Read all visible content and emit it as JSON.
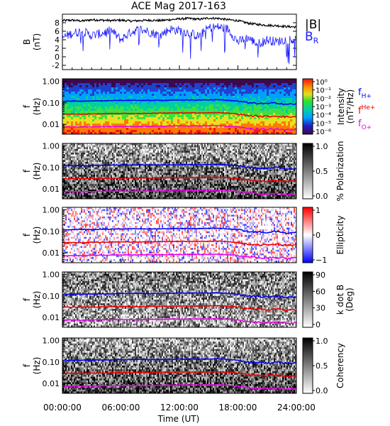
{
  "title": "ACE Mag 2017-163",
  "colors": {
    "btotal": "#000000",
    "bradial": "#1a1aff",
    "fH": "#0000ee",
    "fHe": "#ee0000",
    "fO": "#ee00ee"
  },
  "chart_data": [
    {
      "type": "line",
      "panel": "magnetic-field",
      "ylabel": "B",
      "yunit": "(nT)",
      "ylim": [
        -3,
        10
      ],
      "yticks": [
        "-2",
        "0",
        "2",
        "4",
        "6",
        "8"
      ],
      "series": [
        {
          "name": "|B|",
          "key": "btotal",
          "color": "#000000",
          "x": [
            0,
            1,
            2,
            3,
            4,
            5,
            6,
            7,
            8,
            9,
            10,
            11,
            12,
            13,
            14,
            15,
            16,
            17,
            18,
            19,
            20,
            21,
            22,
            23,
            24
          ],
          "values": [
            8.5,
            8.6,
            8.4,
            8.7,
            8.6,
            8.5,
            8.6,
            8.4,
            8.5,
            8.6,
            8.5,
            8.7,
            8.9,
            9.0,
            8.8,
            9.1,
            9.0,
            8.7,
            8.5,
            7.9,
            7.6,
            7.4,
            7.3,
            7.1,
            7.0
          ]
        },
        {
          "name": "B",
          "subscript": "R",
          "key": "bradial",
          "color": "#1a1aff",
          "x": [
            0,
            1,
            2,
            3,
            4,
            5,
            6,
            7,
            8,
            9,
            10,
            11,
            12,
            13,
            14,
            15,
            16,
            17,
            18,
            19,
            20,
            21,
            22,
            23,
            24
          ],
          "values": [
            4.5,
            5.5,
            6.0,
            5.0,
            5.5,
            6.2,
            4.0,
            5.8,
            6.5,
            5.8,
            5.0,
            6.5,
            6.2,
            5.6,
            4.8,
            6.8,
            7.0,
            6.5,
            3.5,
            4.5,
            3.0,
            4.0,
            3.5,
            4.2,
            3.8
          ]
        }
      ]
    },
    {
      "type": "heatmap",
      "panel": "intensity",
      "ylabel": "f",
      "yunit": "(Hz)",
      "scale": "log",
      "yticks": [
        "1.00",
        "0.10",
        "0.01"
      ],
      "colorbar": {
        "label": "Intensity",
        "unit": "(nT²/Hz)",
        "ticks": [
          "10⁰",
          "10⁻¹",
          "10⁻²",
          "10⁻³",
          "10⁻⁴",
          "10⁻⁵",
          "10⁻⁶"
        ]
      },
      "legend": [
        "f",
        "H+",
        "f",
        "He+",
        "f",
        "O+"
      ]
    },
    {
      "type": "heatmap",
      "panel": "polarization",
      "ylabel": "f",
      "yunit": "(Hz)",
      "yticks": [
        "1.00",
        "0.10",
        "0.01"
      ],
      "colorbar": {
        "label": "% Polarization",
        "ticks": [
          "1.0",
          "0.5",
          "0.0"
        ]
      }
    },
    {
      "type": "heatmap",
      "panel": "ellipticity",
      "ylabel": "f",
      "yunit": "(Hz)",
      "yticks": [
        "1.00",
        "0.10",
        "0.01"
      ],
      "colorbar": {
        "label": "Ellipticity",
        "ticks": [
          "1",
          "0",
          "−1"
        ]
      }
    },
    {
      "type": "heatmap",
      "panel": "kdotb",
      "ylabel": "f",
      "yunit": "(Hz)",
      "yticks": [
        "1.00",
        "0.10",
        "0.01"
      ],
      "colorbar": {
        "label": "k dot B",
        "unit": "(Deg)",
        "ticks": [
          "90",
          "60",
          "30",
          "0"
        ]
      }
    },
    {
      "type": "heatmap",
      "panel": "coherency",
      "ylabel": "f",
      "yunit": "(Hz)",
      "yticks": [
        "1.00",
        "0.10",
        "0.01"
      ],
      "colorbar": {
        "label": "Coherency",
        "ticks": [
          "1.0",
          "0.5",
          "0.0"
        ]
      },
      "xlabel": "Time (UT)",
      "xticks": [
        "00:00:00",
        "06:00:00",
        "12:00:00",
        "18:00:00",
        "24:00:00"
      ]
    }
  ],
  "gyro_lines": {
    "x": [
      0,
      2,
      4,
      6,
      8,
      10,
      12,
      14,
      16,
      17,
      18,
      19,
      20,
      21,
      22,
      23,
      24
    ],
    "fH": [
      0.12,
      0.12,
      0.125,
      0.13,
      0.13,
      0.13,
      0.135,
      0.135,
      0.14,
      0.13,
      0.12,
      0.1,
      0.095,
      0.09,
      0.1,
      0.085,
      0.09
    ],
    "fHe": [
      0.03,
      0.03,
      0.031,
      0.032,
      0.032,
      0.033,
      0.034,
      0.034,
      0.035,
      0.033,
      0.03,
      0.026,
      0.024,
      0.023,
      0.025,
      0.022,
      0.023
    ],
    "fO": [
      0.0075,
      0.0075,
      0.0078,
      0.008,
      0.008,
      0.0082,
      0.0085,
      0.0085,
      0.0088,
      0.0082,
      0.0076,
      0.0065,
      0.006,
      0.0058,
      0.0062,
      0.0055,
      0.0058
    ]
  }
}
